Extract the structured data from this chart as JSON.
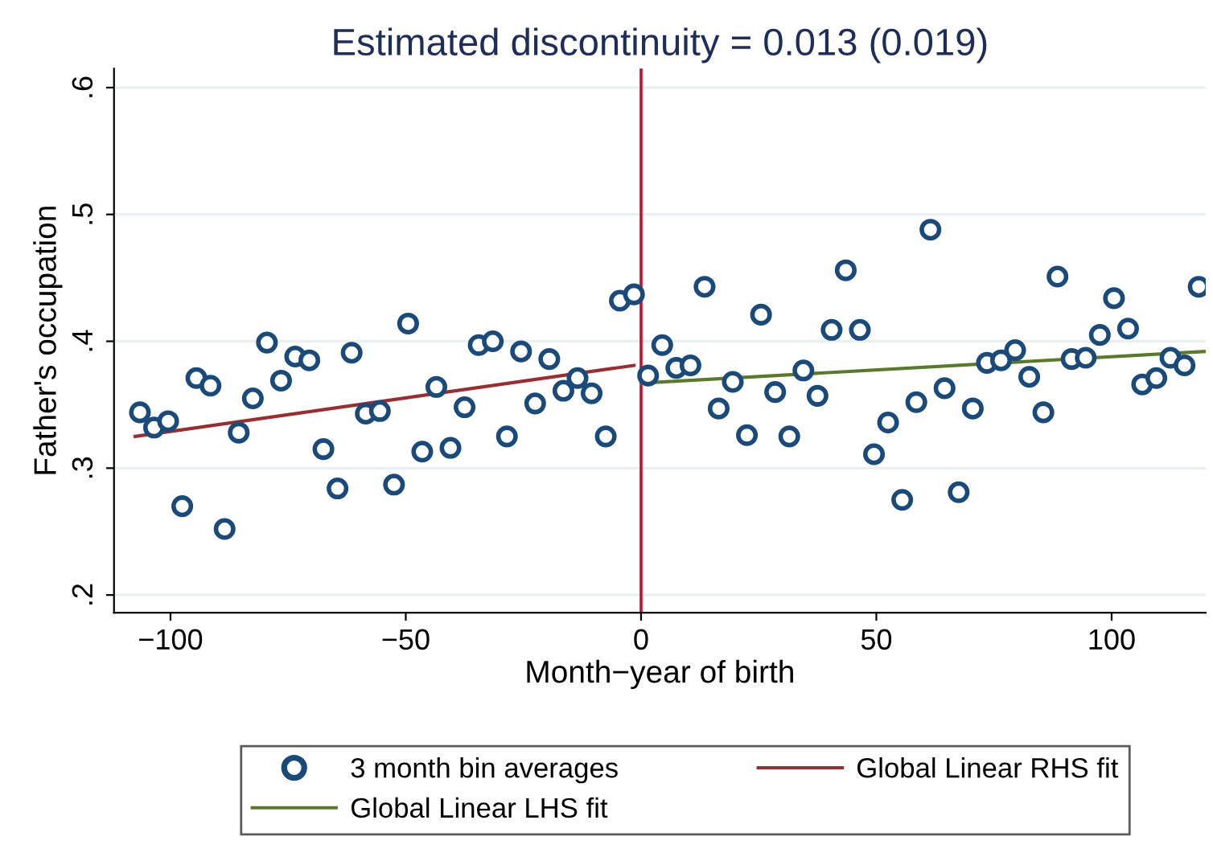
{
  "chart_data": {
    "type": "scatter",
    "title": "Estimated discontinuity = 0.013 (0.019)",
    "xlabel": "Month−year of birth",
    "ylabel": "Father's occupation",
    "xlim": [
      -112,
      120
    ],
    "ylim": [
      0.186,
      0.615
    ],
    "xticks": [
      {
        "value": -100,
        "label": "−100"
      },
      {
        "value": -50,
        "label": "−50"
      },
      0,
      50,
      100
    ],
    "yticks": [
      {
        "value": 0.2,
        "label": ".2"
      },
      {
        "value": 0.3,
        "label": ".3"
      },
      {
        "value": 0.4,
        "label": ".4"
      },
      {
        "value": 0.5,
        "label": ".5"
      },
      {
        "value": 0.6,
        "label": ".6"
      }
    ],
    "grid": "y",
    "legend": "bottom",
    "marker": "circle",
    "ref_lines": [
      {
        "axis": "x",
        "value": 0,
        "color": "#c8102e"
      }
    ],
    "series": [
      {
        "name": "3 month bin averages",
        "color": "#1a4a7a",
        "x": [
          -106.5,
          -103.5,
          -100.5,
          -97.5,
          -94.5,
          -91.5,
          -88.5,
          -85.5,
          -82.5,
          -79.5,
          -76.5,
          -73.5,
          -70.5,
          -67.5,
          -64.5,
          -61.5,
          -58.5,
          -55.5,
          -52.5,
          -49.5,
          -46.5,
          -43.5,
          -40.5,
          -37.5,
          -34.5,
          -31.5,
          -28.5,
          -25.5,
          -22.5,
          -19.5,
          -16.5,
          -13.5,
          -10.5,
          -7.5,
          -4.5,
          -1.5,
          1.5,
          4.5,
          7.5,
          10.5,
          13.5,
          16.5,
          19.5,
          22.5,
          25.5,
          28.5,
          31.5,
          34.5,
          37.5,
          40.5,
          43.5,
          46.5,
          49.5,
          52.5,
          55.5,
          58.5,
          61.5,
          64.5,
          67.5,
          70.5,
          73.5,
          76.5,
          79.5,
          82.5,
          85.5,
          88.5,
          91.5,
          94.5,
          97.5,
          100.5,
          103.5,
          106.5,
          109.5,
          112.5,
          115.5,
          118.5
        ],
        "values": [
          0.344,
          0.332,
          0.337,
          0.27,
          0.371,
          0.365,
          0.252,
          0.328,
          0.355,
          0.399,
          0.369,
          0.388,
          0.385,
          0.315,
          0.284,
          0.391,
          0.343,
          0.345,
          0.287,
          0.414,
          0.313,
          0.364,
          0.316,
          0.348,
          0.397,
          0.4,
          0.325,
          0.392,
          0.351,
          0.386,
          0.361,
          0.371,
          0.359,
          0.325,
          0.432,
          0.437,
          0.373,
          0.397,
          0.379,
          0.381,
          0.443,
          0.347,
          0.368,
          0.326,
          0.421,
          0.36,
          0.325,
          0.377,
          0.357,
          0.409,
          0.456,
          0.409,
          0.311,
          0.336,
          0.275,
          0.352,
          0.488,
          0.363,
          0.281,
          0.347,
          0.383,
          0.385,
          0.393,
          0.372,
          0.344,
          0.451,
          0.386,
          0.387,
          0.405,
          0.434,
          0.41,
          0.366,
          0.371,
          0.387,
          0.381,
          0.443
        ]
      },
      {
        "name": "Global Linear RHS fit",
        "type": "line",
        "color": "#9b2d30",
        "marker": "none",
        "x": [
          -107.5,
          -1.5
        ],
        "values": [
          0.325,
          0.381
        ]
      },
      {
        "name": "Global Linear LHS fit",
        "type": "line",
        "color": "#5a7a2a",
        "marker": "none",
        "x": [
          0,
          120
        ],
        "values": [
          0.367,
          0.392
        ]
      }
    ]
  }
}
